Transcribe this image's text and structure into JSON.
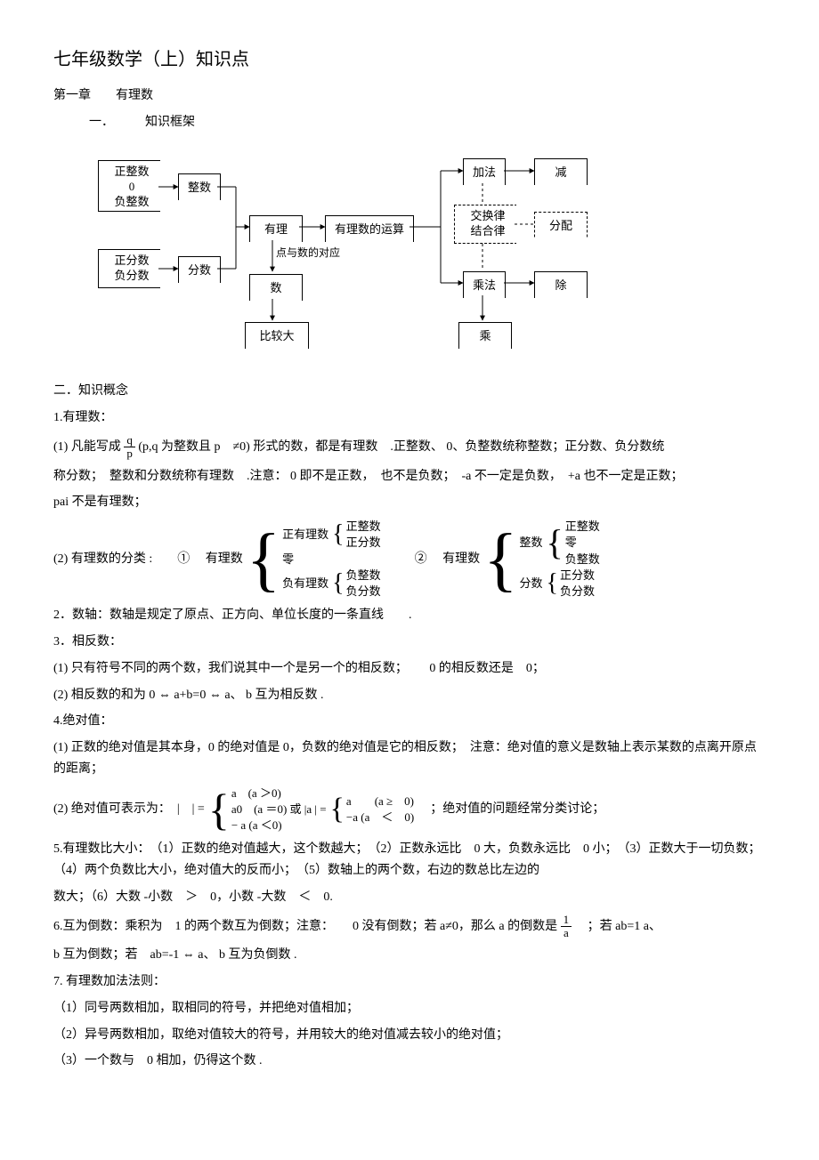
{
  "title": "七年级数学（上）知识点",
  "chapter": "第一章　　有理数",
  "sec1": "一．　　　知识框架",
  "diagram": {
    "b1": "正整数\n0\n负整数",
    "b2": "整数",
    "b3": "正分数\n负分数",
    "b4": "分数",
    "b5": "有理数",
    "b6": "有理数的运算",
    "mid_label": "点与数的对应",
    "b7": "数　轴",
    "b8": "比较大小",
    "b9": "加法",
    "b10": "减　法",
    "b11": "交换律\n结合律",
    "b12": "分配律",
    "b13": "乘法",
    "b14": "除　法",
    "b15": "乘　方"
  },
  "sec2": "二．知识概念",
  "p1_title": " 1.有理数：",
  "p1_1a": "(1) 凡能写成 ",
  "p1_1b": " (p,q 为整数且 p　≠0) 形式的数，都是有理数　.正整数、 0、负整数统称整数；正分数、负分数统",
  "p1_1c": "称分数；　整数和分数统称有理数　.注意： 0 即不是正数，　也不是负数；　-a 不一定是负数，　+a 也不一定是正数；",
  "p1_1d": "pai 不是有理数；",
  "frac_q": "q",
  "frac_p": "p",
  "p1_2a": "(2) 有理数的分类  :　　① 　有理数",
  "p1_2b": "②　 有理数",
  "cls1": {
    "a": "正有理数",
    "a1": "正整数",
    "a2": "正分数",
    "b": "零",
    "c": "负有理数",
    "c1": "负整数",
    "c2": "负分数"
  },
  "cls2": {
    "a": "整数",
    "a1": "正整数",
    "a2": "零",
    "a3": "负整数",
    "b": "分数",
    "b1": "正分数",
    "b2": "负分数"
  },
  "p2": "2．数轴：数轴是规定了原点、正方向、单位长度的一条直线　　.",
  "p3": "3．相反数：",
  "p3_1": "(1) 只有符号不同的两个数，我们说其中一个是另一个的相反数；　　 0 的相反数还是　0；",
  "p3_2": "(2) 相反数的和为 0 ⇔ a+b=0 ⇔ a、 b 互为相反数 .",
  "p4": "4.绝对值：",
  "p4_1": "(1) 正数的绝对值是其本身，0 的绝对值是 0，负数的绝对值是它的相反数；　注意：绝对值的意义是数轴上表示某数的点离开原点的距离；",
  "p4_2a": "(2)  绝对值可表示为：　|　| =",
  "p4_2_r1": "a　(a ＞0)",
  "p4_2_r2": "a0　(a ＝0) 或 |a | =",
  "p4_2_r3": "− a (a ＜0)",
  "p4_2b_r1": "a　　(a ≥　0)",
  "p4_2b_r2": "−a  (a　＜　0)",
  "p4_2c": "　；绝对值的问题经常分类讨论；",
  "p5": "5.有理数比大小：　（1）正数的绝对值越大，这个数越大；　（2）正数永远比　0 大，负数永远比　0 小；　（3）正数大于一切负数；　（4）两个负数比大小，绝对值大的反而小；　（5）数轴上的两个数，右边的数总比左边的",
  "p5b": "数大；（6）大数 -小数　＞　0，小数 -大数　＜　0.",
  "p6a": "6.互为倒数：乘积为　1 的两个数互为倒数；注意：　　0 没有倒数；若  a≠0，那么 a 的倒数是 ",
  "p6b": "　；若 ab=1  a、",
  "frac_1": "1",
  "frac_a": "a",
  "p6c": "b 互为倒数；若　ab=-1 ⇔ a、 b 互为负倒数  .",
  "p7": "7. 有理数加法法则：",
  "p7_1": "（1）同号两数相加，取相同的符号，并把绝对值相加；",
  "p7_2": "（2）异号两数相加，取绝对值较大的符号，并用较大的绝对值减去较小的绝对值；",
  "p7_3": "（3）一个数与　0 相加，仍得这个数  ."
}
